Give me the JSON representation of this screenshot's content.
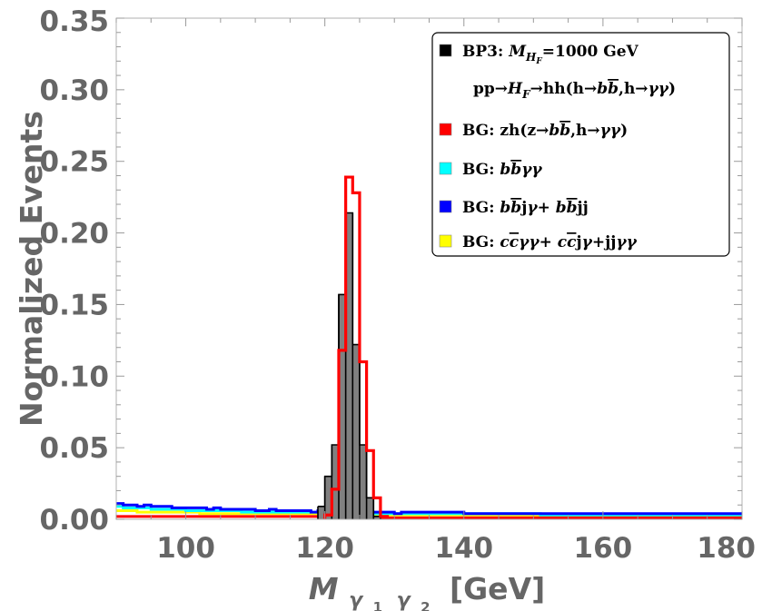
{
  "chart_data": {
    "type": "histogram",
    "xlabel": {
      "main": "M",
      "sub1": "γ",
      "sub1n": "1",
      "sub2": "γ",
      "sub2n": "2",
      "unit": "[GeV]"
    },
    "ylabel": "Normalized Events",
    "xlim": [
      90,
      180
    ],
    "ylim": [
      0,
      0.35
    ],
    "x_ticks": [
      "100",
      "120",
      "140",
      "160",
      "180"
    ],
    "x_tick_values": [
      100,
      120,
      140,
      160,
      180
    ],
    "y_ticks": [
      "0.00",
      "0.05",
      "0.10",
      "0.15",
      "0.20",
      "0.25",
      "0.30",
      "0.35"
    ],
    "y_tick_values": [
      0,
      0.05,
      0.1,
      0.15,
      0.2,
      0.25,
      0.3,
      0.35
    ],
    "grid": false,
    "legend_position": "top-right",
    "bin_width": 1,
    "series": [
      {
        "key": "yellow_bg",
        "color": "#ffff00",
        "style": "step",
        "x_start": 90,
        "values": [
          0.006,
          0.006,
          0.006,
          0.005,
          0.005,
          0.005,
          0.005,
          0.005,
          0.005,
          0.005,
          0.005,
          0.005,
          0.004,
          0.004,
          0.004,
          0.004,
          0.004,
          0.004,
          0.004,
          0.004,
          0.004,
          0.004,
          0.004,
          0.004,
          0.004,
          0.004,
          0.004,
          0.004,
          0.004,
          0.004,
          0.004,
          0.003,
          0.003,
          0.003,
          0.003,
          0.003,
          0.003,
          0.003,
          0.003,
          0.003,
          0.003,
          0.003,
          0.003,
          0.003,
          0.003,
          0.003,
          0.003,
          0.003,
          0.003,
          0.003,
          0.003,
          0.003,
          0.003,
          0.003,
          0.003,
          0.003,
          0.003,
          0.003,
          0.003,
          0.003,
          0.002,
          0.002,
          0.002,
          0.002,
          0.002,
          0.002,
          0.002,
          0.002,
          0.002,
          0.002,
          0.002,
          0.002,
          0.002,
          0.002,
          0.002,
          0.002,
          0.002,
          0.002,
          0.002,
          0.002,
          0.002,
          0.002,
          0.002,
          0.002,
          0.002,
          0.002,
          0.002,
          0.002,
          0.002,
          0.002
        ]
      },
      {
        "key": "cyan_bg",
        "color": "#00ffff",
        "style": "step",
        "x_start": 90,
        "values": [
          0.009,
          0.008,
          0.008,
          0.008,
          0.008,
          0.007,
          0.007,
          0.007,
          0.007,
          0.007,
          0.006,
          0.006,
          0.006,
          0.006,
          0.006,
          0.006,
          0.006,
          0.006,
          0.005,
          0.005,
          0.005,
          0.005,
          0.005,
          0.005,
          0.005,
          0.005,
          0.005,
          0.005,
          0.005,
          0.005,
          0.005,
          0.005,
          0.005,
          0.005,
          0.004,
          0.004,
          0.004,
          0.004,
          0.004,
          0.004,
          0.004,
          0.004,
          0.004,
          0.004,
          0.004,
          0.004,
          0.004,
          0.004,
          0.004,
          0.004,
          0.004,
          0.004,
          0.004,
          0.004,
          0.004,
          0.004,
          0.004,
          0.004,
          0.004,
          0.004,
          0.004,
          0.003,
          0.003,
          0.003,
          0.003,
          0.003,
          0.003,
          0.003,
          0.003,
          0.003,
          0.003,
          0.003,
          0.003,
          0.003,
          0.003,
          0.003,
          0.003,
          0.003,
          0.003,
          0.003,
          0.003,
          0.003,
          0.003,
          0.003,
          0.003,
          0.003,
          0.003,
          0.003,
          0.003,
          0.003
        ]
      },
      {
        "key": "blue_bg",
        "color": "#0000ff",
        "style": "step",
        "x_start": 90,
        "values": [
          0.011,
          0.01,
          0.01,
          0.009,
          0.01,
          0.009,
          0.009,
          0.009,
          0.008,
          0.008,
          0.008,
          0.008,
          0.008,
          0.007,
          0.008,
          0.007,
          0.007,
          0.007,
          0.007,
          0.007,
          0.006,
          0.006,
          0.007,
          0.006,
          0.006,
          0.006,
          0.006,
          0.006,
          0.005,
          0.006,
          0.005,
          0.005,
          0.005,
          0.005,
          0.005,
          0.005,
          0.005,
          0.005,
          0.005,
          0.005,
          0.004,
          0.005,
          0.005,
          0.005,
          0.005,
          0.005,
          0.005,
          0.005,
          0.005,
          0.005,
          0.004,
          0.004,
          0.004,
          0.004,
          0.004,
          0.004,
          0.004,
          0.004,
          0.004,
          0.004,
          0.004,
          0.004,
          0.004,
          0.004,
          0.004,
          0.004,
          0.004,
          0.004,
          0.004,
          0.004,
          0.004,
          0.004,
          0.004,
          0.004,
          0.004,
          0.004,
          0.004,
          0.004,
          0.004,
          0.004,
          0.004,
          0.004,
          0.004,
          0.004,
          0.004,
          0.004,
          0.004,
          0.004,
          0.004,
          0.004
        ]
      },
      {
        "key": "red_bg_base",
        "color": "#ff0000",
        "style": "step",
        "x_start": 90,
        "values": [
          0.002,
          0.002,
          0.002,
          0.002,
          0.002,
          0.002,
          0.002,
          0.002,
          0.002,
          0.002,
          0.002,
          0.002,
          0.002,
          0.002,
          0.002,
          0.002,
          0.002,
          0.002,
          0.002,
          0.002,
          0.002,
          0.002,
          0.002,
          0.002,
          0.002,
          0.002,
          0.002,
          0.002,
          0.002,
          0.002,
          0.002,
          0.001,
          0.001,
          0.001,
          0.001,
          0.001,
          0.001,
          0.001,
          0.001,
          0.001,
          0.001,
          0.001,
          0.001,
          0.001,
          0.001,
          0.001,
          0.001,
          0.001,
          0.001,
          0.001,
          0.001,
          0.001,
          0.001,
          0.001,
          0.001,
          0.001,
          0.001,
          0.001,
          0.001,
          0.001,
          0.001,
          0.001,
          0.001,
          0.001,
          0.001,
          0.001,
          0.001,
          0.001,
          0.001,
          0.001,
          0.001,
          0.001,
          0.001,
          0.001,
          0.001,
          0.001,
          0.001,
          0.001,
          0.001,
          0.001,
          0.001,
          0.001,
          0.001,
          0.001,
          0.001,
          0.001,
          0.001,
          0.001,
          0.001,
          0.001
        ]
      },
      {
        "key": "bp3_signal",
        "color": "#000000",
        "fill": "#808080",
        "style": "filled-step",
        "x_start": 119,
        "values": [
          0.009,
          0.03,
          0.052,
          0.157,
          0.214,
          0.122,
          0.052,
          0.015,
          0.002
        ]
      },
      {
        "key": "zh_bg",
        "color": "#ff0000",
        "style": "step",
        "x_start": 120,
        "values": [
          0.003,
          0.021,
          0.118,
          0.239,
          0.228,
          0.11,
          0.048,
          0.015,
          0.002
        ]
      }
    ],
    "legend": [
      {
        "swatch": "#000000",
        "line1": [
          {
            "t": "BP3: ",
            "i": false
          },
          {
            "t": "M",
            "i": true
          },
          {
            "t": "H",
            "i": true,
            "sub": true
          },
          {
            "t": "F",
            "i": true,
            "subsub": true
          },
          {
            "t": "=1000 GeV",
            "i": false
          }
        ],
        "line2": [
          {
            "t": "pp→",
            "i": false
          },
          {
            "t": "H",
            "i": true
          },
          {
            "t": "F",
            "i": true,
            "sub": true
          },
          {
            "t": "→hh(h→",
            "i": false
          },
          {
            "t": "b",
            "i": true
          },
          {
            "t": "b",
            "i": true,
            "bar": true
          },
          {
            "t": ",h→",
            "i": false
          },
          {
            "t": "γγ",
            "i": true
          },
          {
            "t": ")",
            "i": false
          }
        ]
      },
      {
        "swatch": "#ff0000",
        "line1": [
          {
            "t": "BG: zh(z→",
            "i": false
          },
          {
            "t": "b",
            "i": true
          },
          {
            "t": "b",
            "i": true,
            "bar": true
          },
          {
            "t": ",h→",
            "i": false
          },
          {
            "t": "γγ",
            "i": true
          },
          {
            "t": ")",
            "i": false
          }
        ]
      },
      {
        "swatch": "#00ffff",
        "line1": [
          {
            "t": "BG: ",
            "i": false
          },
          {
            "t": "b",
            "i": true
          },
          {
            "t": "b",
            "i": true,
            "bar": true
          },
          {
            "t": "γγ",
            "i": true
          }
        ]
      },
      {
        "swatch": "#0000ff",
        "line1": [
          {
            "t": "BG: ",
            "i": false
          },
          {
            "t": "b",
            "i": true
          },
          {
            "t": "b",
            "i": true,
            "bar": true
          },
          {
            "t": "j",
            "i": false
          },
          {
            "t": "γ",
            "i": true
          },
          {
            "t": "+ ",
            "i": false
          },
          {
            "t": "b",
            "i": true
          },
          {
            "t": "b",
            "i": true,
            "bar": true
          },
          {
            "t": "jj",
            "i": false
          }
        ]
      },
      {
        "swatch": "#ffff00",
        "line1": [
          {
            "t": "BG:  ",
            "i": false
          },
          {
            "t": "c",
            "i": true
          },
          {
            "t": "c",
            "i": true,
            "bar": true
          },
          {
            "t": "γγ",
            "i": true
          },
          {
            "t": "+ ",
            "i": false
          },
          {
            "t": "c",
            "i": true
          },
          {
            "t": "c",
            "i": true,
            "bar": true
          },
          {
            "t": "j",
            "i": false
          },
          {
            "t": "γ",
            "i": true
          },
          {
            "t": "+jj",
            "i": false
          },
          {
            "t": "γγ",
            "i": true
          }
        ]
      }
    ]
  }
}
